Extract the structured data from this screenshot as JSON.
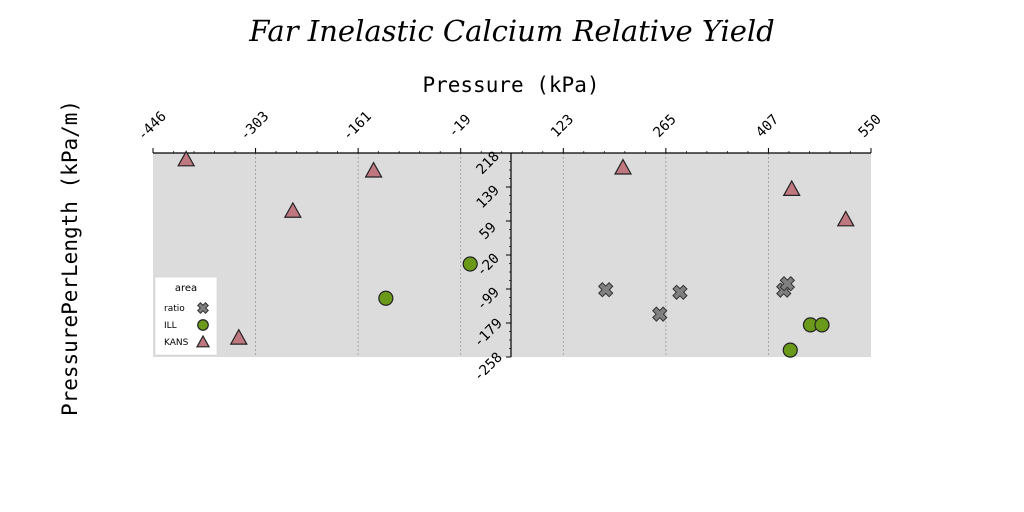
{
  "chart_data": {
    "type": "scatter",
    "title": "Far Inelastic Calcium Relative Yield",
    "xlabel": "Pressure (kPa)",
    "ylabel": "PressurePerLength (kPa/m)",
    "xlim": [
      -446,
      550
    ],
    "ylim": [
      -258,
      218
    ],
    "xticks": [
      "-446",
      "-303",
      "-161",
      "-19",
      "123",
      "265",
      "407",
      "550"
    ],
    "yticks": [
      "218",
      "139",
      "59",
      "-20",
      "-99",
      "-179",
      "-258"
    ],
    "grid": true,
    "background": "#dcdcdc",
    "legend": {
      "title": "area",
      "position": "lower-left"
    },
    "series": [
      {
        "name": "ratio",
        "marker": "x",
        "color": "#808080",
        "points": [
          [
            182,
            -101
          ],
          [
            285,
            -107
          ],
          [
            257,
            -158
          ],
          [
            429,
            -102
          ],
          [
            434,
            -87
          ]
        ]
      },
      {
        "name": "ILL",
        "marker": "circle",
        "color": "#6b9a1a",
        "points": [
          [
            -6,
            -41
          ],
          [
            -123,
            -121
          ],
          [
            466,
            -183
          ],
          [
            482,
            -183
          ],
          [
            438,
            -242
          ]
        ]
      },
      {
        "name": "KANS",
        "marker": "triangle",
        "color": "#c07880",
        "points": [
          [
            -400,
            203
          ],
          [
            -140,
            177
          ],
          [
            -252,
            83
          ],
          [
            -327,
            -213
          ],
          [
            206,
            184
          ],
          [
            440,
            134
          ],
          [
            515,
            63
          ]
        ]
      }
    ]
  }
}
